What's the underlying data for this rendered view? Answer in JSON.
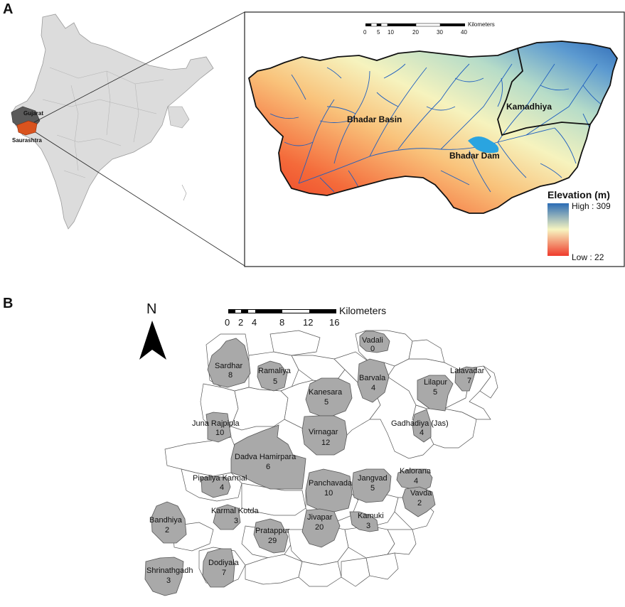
{
  "panel_a": {
    "letter": "A",
    "india_labels": {
      "gujarat": "Gujarat",
      "saurashtra": "Saurashtra"
    },
    "scale_bar": {
      "unit": "Kilometers",
      "ticks": [
        "0",
        "5",
        "10",
        "20",
        "30",
        "40"
      ]
    },
    "region_labels": {
      "basin": "Bhadar Basin",
      "sub_basin": "Kamadhiya",
      "dam": "Bhadar Dam"
    },
    "legend": {
      "title": "Elevation (m)",
      "high": "High : 309",
      "low": "Low : 22"
    },
    "colors": {
      "low": "#ef3b2c",
      "mid": "#f7f5c0",
      "high": "#2b6cb5",
      "river": "#1f5fbf",
      "dam": "#2aa4e0",
      "gujarat": "#555555",
      "saurashtra": "#d9531e"
    }
  },
  "panel_b": {
    "letter": "B",
    "north": "N",
    "scale_bar": {
      "unit": "Kilometers",
      "ticks": [
        "0",
        "2",
        "4",
        "8",
        "12",
        "16"
      ]
    },
    "villages": [
      {
        "name": "Vadali",
        "count": "0"
      },
      {
        "name": "Sardhar",
        "count": "8"
      },
      {
        "name": "Ramaliya",
        "count": "5"
      },
      {
        "name": "Barvala",
        "count": "4"
      },
      {
        "name": "Kanesara",
        "count": "5"
      },
      {
        "name": "Lilapur",
        "count": "5"
      },
      {
        "name": "Lalavadar",
        "count": "7"
      },
      {
        "name": "Juna Rajpipla",
        "count": "10"
      },
      {
        "name": "Virnagar",
        "count": "12"
      },
      {
        "name": "Gadhadiya (Jas)",
        "count": "4"
      },
      {
        "name": "Dadva Hamirpara",
        "count": "6"
      },
      {
        "name": "Pipaliya Karmal",
        "count": "4"
      },
      {
        "name": "Panchavada",
        "count": "10"
      },
      {
        "name": "Jangvad",
        "count": "5"
      },
      {
        "name": "Kalorana",
        "count": "4"
      },
      {
        "name": "Vavda",
        "count": "2"
      },
      {
        "name": "Bandhiya",
        "count": "2"
      },
      {
        "name": "Karmal Kotda",
        "count": "3"
      },
      {
        "name": "Jivapar",
        "count": "20"
      },
      {
        "name": "Kamuki",
        "count": "3"
      },
      {
        "name": "Pratappur",
        "count": "29"
      },
      {
        "name": "Dodiyala",
        "count": "7"
      },
      {
        "name": "Shrinathgadh",
        "count": "3"
      }
    ],
    "colors": {
      "highlight": "#a9a9a9",
      "outline": "#555555"
    }
  }
}
